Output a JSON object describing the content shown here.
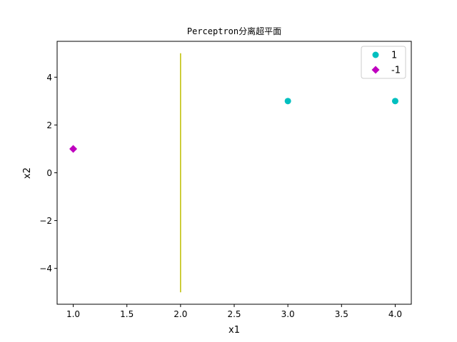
{
  "chart_data": {
    "type": "scatter",
    "title": "Perceptron分离超平面",
    "xlabel": "x1",
    "ylabel": "x2",
    "xlim": [
      0.85,
      4.15
    ],
    "ylim": [
      -5.5,
      5.5
    ],
    "xticks": [
      1.0,
      1.5,
      2.0,
      2.5,
      3.0,
      3.5,
      4.0
    ],
    "xtick_labels": [
      "1.0",
      "1.5",
      "2.0",
      "2.5",
      "3.0",
      "3.5",
      "4.0"
    ],
    "yticks": [
      -4,
      -2,
      0,
      2,
      4
    ],
    "ytick_labels": [
      "−4",
      "−2",
      "0",
      "2",
      "4"
    ],
    "grid": false,
    "legend_position": "top-right",
    "series": [
      {
        "name": "1",
        "marker": "circle",
        "color": "#00bfbf",
        "points": [
          [
            3,
            3
          ],
          [
            4,
            3
          ]
        ]
      },
      {
        "name": "-1",
        "marker": "diamond",
        "color": "#bf00bf",
        "points": [
          [
            1,
            1
          ]
        ]
      }
    ],
    "lines": [
      {
        "color": "#bfbf00",
        "points": [
          [
            2,
            5
          ],
          [
            2,
            -5
          ]
        ]
      }
    ]
  }
}
